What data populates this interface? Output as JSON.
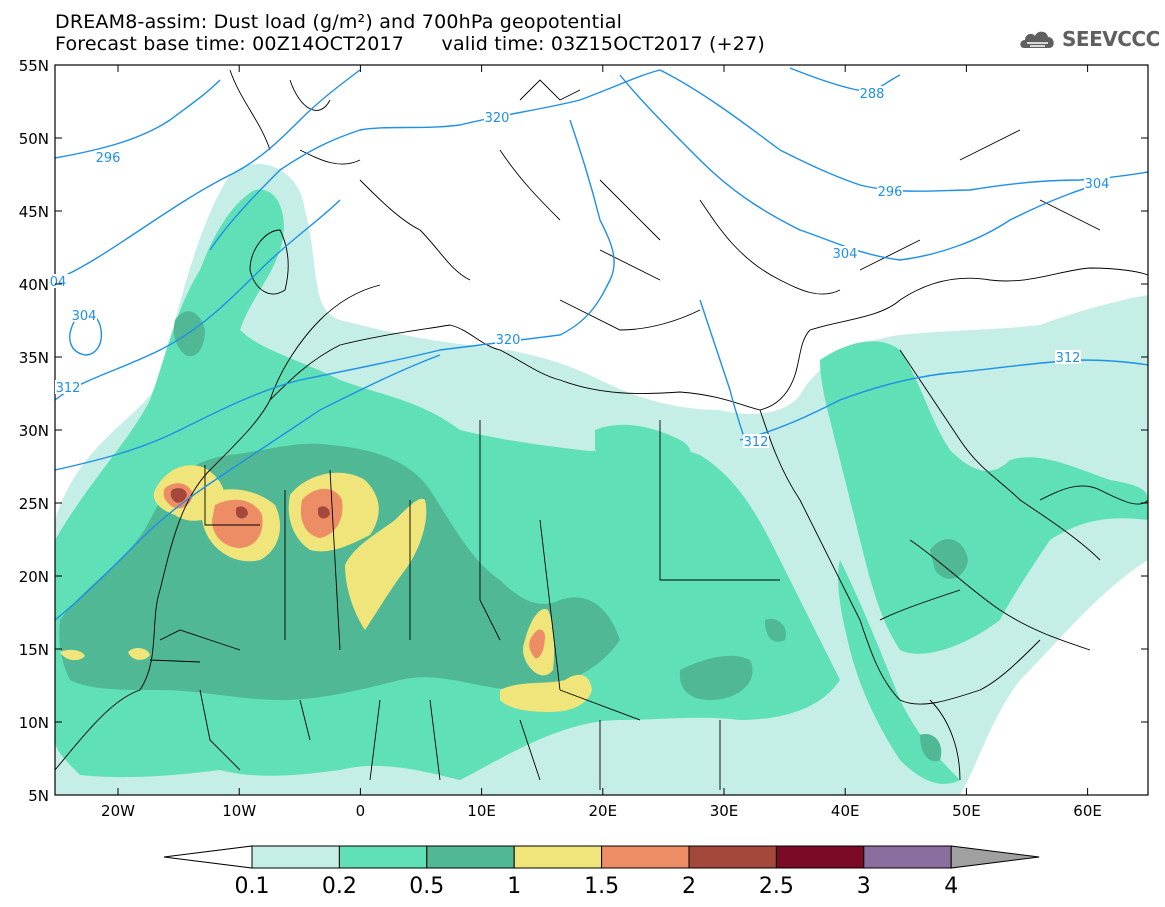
{
  "title": {
    "line1": "DREAM8-assim: Dust load (g/m²) and 700hPa geopotential",
    "line2": "Forecast base time: 00Z14OCT2017      valid time: 03Z15OCT2017 (+27)"
  },
  "logo": {
    "text": "SEEVCCC",
    "icon": "cloud-icon"
  },
  "axes": {
    "lat_labels": [
      "55N",
      "50N",
      "45N",
      "40N",
      "35N",
      "30N",
      "25N",
      "20N",
      "15N",
      "10N",
      "5N"
    ],
    "lon_labels": [
      "20W",
      "10W",
      "0",
      "10E",
      "20E",
      "30E",
      "40E",
      "50E",
      "60E"
    ]
  },
  "contour_labels": [
    "296",
    "288",
    "320",
    "296",
    "304",
    "304",
    "304",
    "04",
    "312",
    "320",
    "312",
    "312"
  ],
  "colorbar": {
    "ticks": [
      "0.1",
      "0.2",
      "0.5",
      "1",
      "1.5",
      "2",
      "2.5",
      "3",
      "4"
    ],
    "colors": [
      "#c4eee6",
      "#5fe0b6",
      "#50b894",
      "#f0e57a",
      "#ec8d66",
      "#a4483c",
      "#7a0a26",
      "#8a6ea0"
    ],
    "under_color": "#ffffff",
    "over_color": "#a0a0a0"
  },
  "map_colors": {
    "contour": "#1e90e6",
    "border": "#000000"
  }
}
